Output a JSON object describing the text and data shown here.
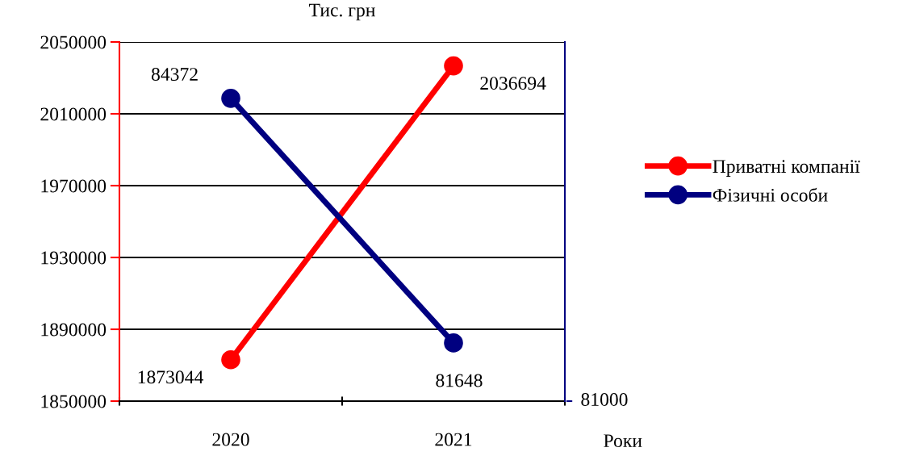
{
  "chart_data": {
    "type": "line",
    "ylabel": "Тис. грн",
    "xlabel": "Роки",
    "categories": [
      "2020",
      "2021"
    ],
    "series": [
      {
        "name": "Приватні компанії",
        "color": "#ff0000",
        "values": [
          1873044,
          2036694
        ]
      },
      {
        "name": "Фізичні особи",
        "color": "#000080",
        "values": [
          84372,
          81648
        ],
        "axis": "y2"
      }
    ],
    "ylim": [
      1850000,
      2050000
    ],
    "yticks": [
      1850000,
      1890000,
      1930000,
      1970000,
      2010000,
      2050000
    ],
    "y2lim": [
      81000,
      85000
    ],
    "annotations": [
      "81000"
    ],
    "grid": "y",
    "legend": "right",
    "marker": "circle",
    "line_style": "solid",
    "data_labels": true
  }
}
